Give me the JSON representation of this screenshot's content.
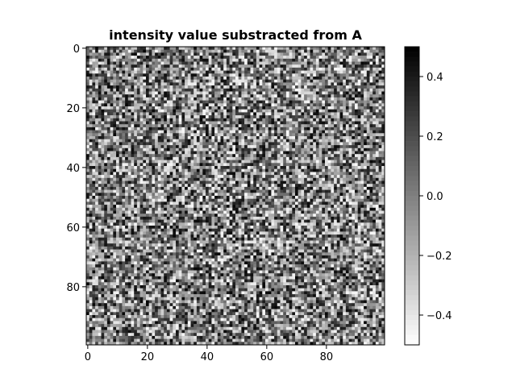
{
  "chart_data": {
    "type": "heatmap",
    "title": "intensity value substracted from A",
    "xlabel": "",
    "ylabel": "",
    "x_ticks": [
      "0",
      "20",
      "40",
      "60",
      "80"
    ],
    "y_ticks": [
      "0",
      "20",
      "40",
      "60",
      "80"
    ],
    "xlim": [
      -0.5,
      99.5
    ],
    "ylim": [
      99.5,
      -0.5
    ],
    "grid_shape": [
      100,
      100
    ],
    "values_description_note": "",
    "colormap": "gray_r",
    "colorbar": {
      "vmin": -0.5,
      "vmax": 0.5,
      "ticks": [
        "0.4",
        "0.2",
        "0.0",
        "−0.2",
        "−0.4"
      ],
      "tick_values": [
        0.4,
        0.2,
        0.0,
        -0.2,
        -0.4
      ]
    },
    "grid": false,
    "colors": {
      "high": "#000000",
      "low": "#ffffff",
      "frame": "#000000"
    }
  }
}
